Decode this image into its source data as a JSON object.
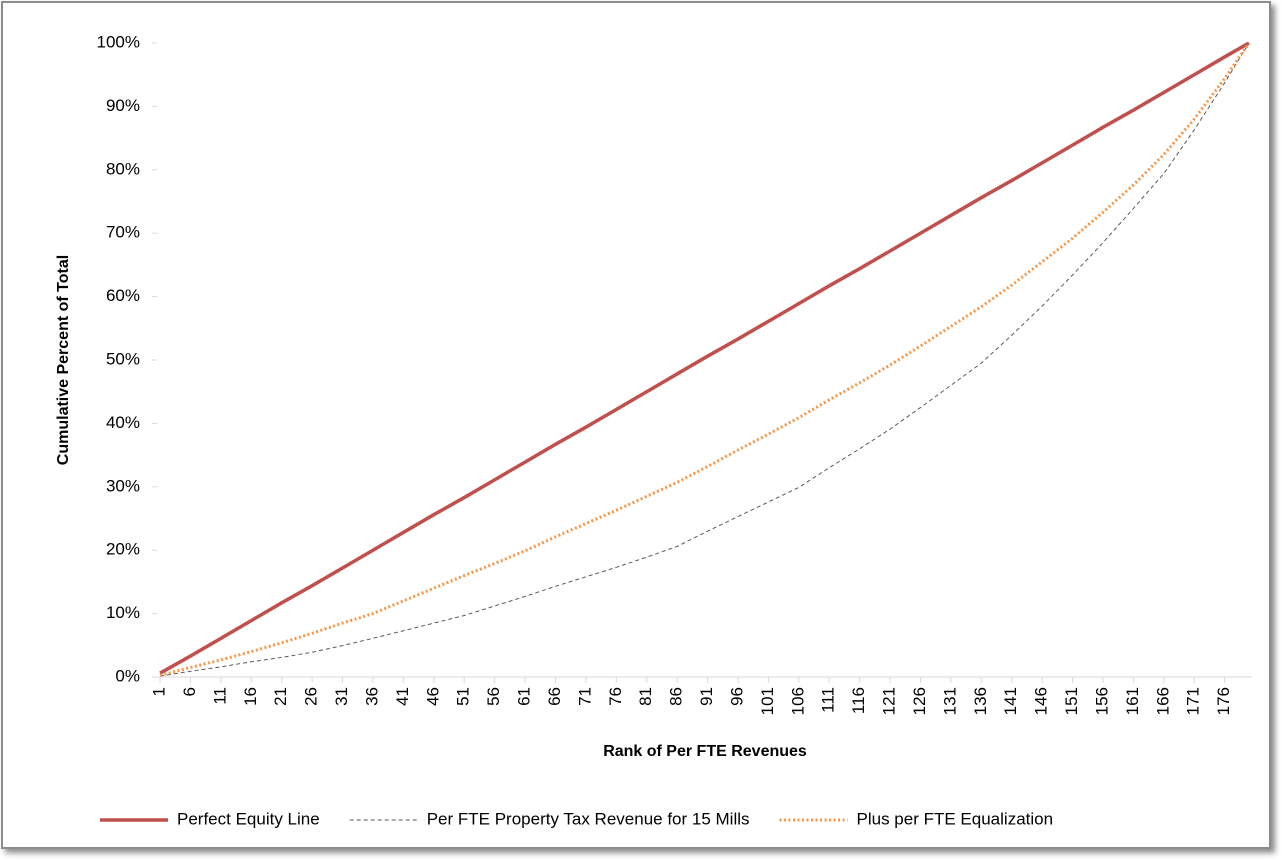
{
  "chart_data": {
    "type": "line",
    "xlabel": "Rank of Per FTE Revenues",
    "ylabel": "Cumulative Percent of Total",
    "x": [
      1,
      6,
      11,
      16,
      21,
      26,
      31,
      36,
      41,
      46,
      51,
      56,
      61,
      66,
      71,
      76,
      81,
      86,
      91,
      96,
      101,
      106,
      111,
      116,
      121,
      126,
      131,
      136,
      141,
      146,
      151,
      156,
      161,
      166,
      171,
      176,
      180
    ],
    "xlim": [
      0.5,
      180.5
    ],
    "xticks": [
      1,
      6,
      11,
      16,
      21,
      26,
      31,
      36,
      41,
      46,
      51,
      56,
      61,
      66,
      71,
      76,
      81,
      86,
      91,
      96,
      101,
      106,
      111,
      116,
      121,
      126,
      131,
      136,
      141,
      146,
      151,
      156,
      161,
      166,
      171,
      176
    ],
    "ylim": [
      0,
      100
    ],
    "yticks": [
      {
        "value": 0,
        "label": "0%"
      },
      {
        "value": 10,
        "label": "10%"
      },
      {
        "value": 20,
        "label": "20%"
      },
      {
        "value": 30,
        "label": "30%"
      },
      {
        "value": 40,
        "label": "40%"
      },
      {
        "value": 50,
        "label": "50%"
      },
      {
        "value": 60,
        "label": "60%"
      },
      {
        "value": 70,
        "label": "70%"
      },
      {
        "value": 80,
        "label": "80%"
      },
      {
        "value": 90,
        "label": "90%"
      },
      {
        "value": 100,
        "label": "100%"
      }
    ],
    "legend": "bottom",
    "series": [
      {
        "name": "Perfect Equity Line",
        "color": "#c0504d",
        "line_style": "solid",
        "values": [
          0.6,
          3.3,
          6.1,
          8.9,
          11.7,
          14.4,
          17.2,
          20,
          22.8,
          25.6,
          28.3,
          31.1,
          33.9,
          36.7,
          39.4,
          42.2,
          45,
          47.8,
          50.6,
          53.3,
          56.1,
          58.9,
          61.7,
          64.4,
          67.2,
          70,
          72.8,
          75.6,
          78.3,
          81.1,
          83.9,
          86.7,
          89.4,
          92.2,
          95,
          97.8,
          100
        ]
      },
      {
        "name": "Per FTE Property Tax Revenue for 15 Mills",
        "color": "#595959",
        "line_style": "dashed",
        "values": [
          0.15,
          0.9,
          1.6,
          2.4,
          3.1,
          3.9,
          4.95,
          6.1,
          7.3,
          8.5,
          9.7,
          11.2,
          12.7,
          14.3,
          15.8,
          17.3,
          18.9,
          20.6,
          23.0,
          25.3,
          27.6,
          29.9,
          33.0,
          36.0,
          39.1,
          42.5,
          46.0,
          49.5,
          53.9,
          58.5,
          63.4,
          68.5,
          73.9,
          79.4,
          86.3,
          93.7,
          100
        ]
      },
      {
        "name": "Plus per FTE Equalization",
        "color": "#f79646",
        "line_style": "dotted",
        "values": [
          0.25,
          1.5,
          2.7,
          4.0,
          5.4,
          6.9,
          8.5,
          10,
          12.0,
          14.0,
          16.0,
          17.9,
          19.9,
          22.1,
          24.2,
          26.3,
          28.5,
          30.7,
          33.2,
          35.8,
          38.3,
          40.9,
          43.7,
          46.4,
          49.2,
          52.2,
          55.3,
          58.4,
          61.8,
          65.5,
          69.2,
          73.3,
          77.6,
          82.4,
          88.0,
          94.4,
          100
        ]
      }
    ]
  }
}
